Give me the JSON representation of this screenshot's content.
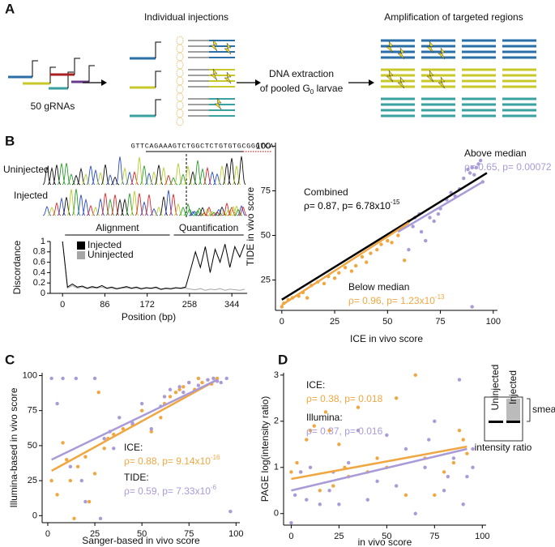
{
  "figure": {
    "panel_labels": [
      "A",
      "B",
      "C",
      "D"
    ]
  },
  "panel_a": {
    "grna_label": "50 gRNAs",
    "injections_title": "Individual injections",
    "extraction": [
      "DNA extraction",
      "of pooled G",
      "0",
      " larvae"
    ],
    "amplification_title": "Amplification of targeted regions"
  },
  "panel_b_trace": {
    "sequence": "GTTCAGAAAGTCTGGCTCTGTGTGCGGGTCA",
    "rows": [
      "Uninjected",
      "Injected"
    ]
  },
  "chart_data": [
    {
      "type": "line",
      "xlabel": "Position (bp)",
      "ylabel": "Discordance",
      "x": [
        0,
        10,
        20,
        30,
        40,
        50,
        60,
        70,
        80,
        90,
        100,
        110,
        120,
        130,
        140,
        150,
        160,
        170,
        180,
        190,
        200,
        210,
        220,
        230,
        240,
        250,
        260,
        270,
        280,
        290,
        300,
        310,
        320,
        330,
        340,
        350,
        360,
        370
      ],
      "series": [
        {
          "name": "Injected",
          "color": "#000000",
          "values": [
            1,
            0.12,
            0.18,
            0.12,
            0.14,
            0.1,
            0.13,
            0.11,
            0.15,
            0.1,
            0.12,
            0.09,
            0.11,
            0.13,
            0.1,
            0.12,
            0.09,
            0.11,
            0.1,
            0.12,
            0.08,
            0.1,
            0.09,
            0.11,
            0.1,
            0.12,
            0.45,
            0.8,
            0.5,
            0.9,
            0.4,
            0.85,
            0.6,
            0.95,
            0.5,
            0.9,
            0.7,
            0.95
          ]
        },
        {
          "name": "Uninjected",
          "color": "#a6a6a6",
          "values": [
            1,
            0.1,
            0.15,
            0.1,
            0.12,
            0.09,
            0.11,
            0.1,
            0.12,
            0.09,
            0.1,
            0.08,
            0.1,
            0.11,
            0.09,
            0.1,
            0.08,
            0.1,
            0.09,
            0.1,
            0.07,
            0.09,
            0.08,
            0.1,
            0.09,
            0.1,
            0.08,
            0.07,
            0.09,
            0.06,
            0.08,
            0.07,
            0.09,
            0.06,
            0.08,
            0.07,
            0.06,
            0.08
          ]
        }
      ],
      "xlim": [
        -25,
        375
      ],
      "ylim": [
        0,
        1
      ],
      "xticks": [
        0,
        86,
        172,
        258,
        344
      ],
      "yticks": [
        0,
        0.2,
        0.4,
        0.6,
        0.8,
        1
      ],
      "regions": [
        {
          "label": "Alignment",
          "start": 5,
          "end": 218
        },
        {
          "label": "Quantification",
          "start": 226,
          "end": 368
        }
      ]
    },
    {
      "type": "scatter",
      "xlabel": "ICE in vivo score",
      "ylabel": "TIDE in vivo score",
      "xlim": [
        -3,
        102
      ],
      "ylim": [
        8,
        102
      ],
      "xticks": [
        0,
        25,
        50,
        75,
        100
      ],
      "yticks": [
        25,
        50,
        75,
        100
      ],
      "series": [
        {
          "name": "Below median",
          "color": "#f0a742",
          "x": [
            0,
            1,
            3,
            5,
            8,
            10,
            12,
            14,
            17,
            20,
            22,
            25,
            27,
            30,
            33,
            35,
            38,
            40,
            42,
            45,
            47,
            50,
            52,
            55,
            57,
            58,
            60
          ],
          "values": [
            10,
            12,
            14,
            15,
            16,
            18,
            15,
            22,
            24,
            23,
            27,
            26,
            29,
            32,
            30,
            33,
            38,
            35,
            40,
            42,
            45,
            47,
            46,
            50,
            55,
            36,
            58
          ],
          "fit": {
            "x": [
              0,
              60
            ],
            "values": [
              11,
              57
            ]
          },
          "stat": [
            "ρ= 0.96, p= 1.23x10",
            "-13"
          ]
        },
        {
          "name": "Above median",
          "color": "#a99ad8",
          "x": [
            60,
            62,
            63,
            65,
            66,
            68,
            70,
            72,
            74,
            75,
            78,
            80,
            82,
            84,
            86,
            88,
            89,
            90,
            91,
            92,
            93,
            94,
            95,
            90
          ],
          "values": [
            42,
            55,
            60,
            62,
            52,
            47,
            60,
            58,
            62,
            65,
            70,
            74,
            72,
            76,
            82,
            87,
            85,
            88,
            84,
            88,
            90,
            92,
            80,
            10
          ],
          "fit": {
            "x": [
              55,
              95
            ],
            "values": [
              52,
              80
            ]
          },
          "stat": [
            "ρ= 0.65, p= 0.00072"
          ]
        }
      ],
      "combined": {
        "name": "Combined",
        "color": "#000000",
        "fit": {
          "x": [
            0,
            97
          ],
          "values": [
            14,
            85
          ]
        },
        "stat": [
          "ρ= 0.87, p= 6.78x10",
          "-15"
        ]
      }
    },
    {
      "type": "scatter",
      "xlabel": "Sanger-based in vivo score",
      "ylabel": "Illumina-based in vivo score",
      "xlim": [
        -3,
        102
      ],
      "ylim": [
        -5,
        102
      ],
      "xticks": [
        0,
        25,
        50,
        75,
        100
      ],
      "yticks": [
        0,
        25,
        50,
        75,
        100
      ],
      "series": [
        {
          "name": "ICE:",
          "color": "#f0a742",
          "x": [
            2,
            5,
            8,
            10,
            12,
            14,
            16,
            20,
            22,
            25,
            27,
            30,
            32,
            35,
            40,
            45,
            50,
            55,
            60,
            62,
            65,
            68,
            70,
            72,
            75,
            78,
            80,
            82,
            85,
            87,
            88,
            90
          ],
          "values": [
            25,
            15,
            52,
            40,
            25,
            -2,
            35,
            42,
            10,
            30,
            88,
            48,
            55,
            58,
            62,
            65,
            75,
            60,
            70,
            80,
            85,
            88,
            90,
            92,
            95,
            90,
            98,
            95,
            97,
            94,
            98,
            98
          ],
          "fit": {
            "x": [
              2,
              90
            ],
            "values": [
              32,
              97
            ]
          },
          "stat": [
            "ρ= 0.88, p= 9.14x10",
            "-16"
          ]
        },
        {
          "name": "TIDE:",
          "color": "#a99ad8",
          "x": [
            2,
            5,
            8,
            12,
            15,
            18,
            20,
            25,
            28,
            30,
            33,
            35,
            38,
            45,
            50,
            55,
            60,
            62,
            65,
            70,
            72,
            75,
            80,
            85,
            88,
            90,
            92,
            95,
            97
          ],
          "values": [
            98,
            80,
            98,
            35,
            98,
            25,
            10,
            98,
            -2,
            55,
            60,
            48,
            70,
            66,
            80,
            62,
            78,
            85,
            90,
            92,
            88,
            95,
            93,
            97,
            98,
            96,
            95,
            98,
            3
          ],
          "fit": {
            "x": [
              2,
              90
            ],
            "values": [
              40,
              97
            ]
          },
          "stat": [
            "ρ= 0.59, p= 7.33x10",
            "-6"
          ]
        }
      ]
    },
    {
      "type": "scatter",
      "xlabel": "in vivo score",
      "ylabel": "PAGE log(intensity ratio)",
      "xlim": [
        -4,
        102
      ],
      "ylim": [
        -0.25,
        3.05
      ],
      "xticks": [
        0,
        25,
        50,
        75,
        100
      ],
      "yticks": [
        0,
        1,
        2,
        3
      ],
      "series": [
        {
          "name": "ICE:",
          "color": "#f0a742",
          "x": [
            0,
            3,
            5,
            8,
            10,
            12,
            15,
            18,
            20,
            22,
            25,
            28,
            30,
            35,
            40,
            45,
            50,
            55,
            60,
            65,
            70,
            75,
            80,
            85,
            88,
            90,
            92
          ],
          "values": [
            0.9,
            1.1,
            0.9,
            1.6,
            1.8,
            1.9,
            0.5,
            2.2,
            1.8,
            0.6,
            1.5,
            1,
            0.8,
            2.3,
            0.9,
            1.2,
            1,
            2.5,
            0.4,
            3,
            1.2,
            0.4,
            0.9,
            1.1,
            1.8,
            1.6,
            1.3
          ],
          "fit": {
            "x": [
              0,
              92
            ],
            "values": [
              0.75,
              1.45
            ]
          },
          "stat": [
            "ρ= 0.38, p= 0.018"
          ]
        },
        {
          "name": "Illumina:",
          "color": "#a99ad8",
          "x": [
            0,
            2,
            5,
            8,
            10,
            15,
            20,
            22,
            25,
            30,
            35,
            40,
            45,
            50,
            55,
            60,
            65,
            70,
            72,
            75,
            80,
            82,
            85,
            88,
            90,
            92,
            95,
            95
          ],
          "values": [
            -0.2,
            0.4,
            0.9,
            0.3,
            1,
            0.2,
            0.5,
            0.9,
            0.2,
            1.1,
            1.8,
            0.3,
            0.7,
            1.7,
            0.6,
            1.4,
            0,
            1,
            1.6,
            2,
            0.5,
            0.8,
            1.2,
            2.9,
            0.2,
            0.8,
            1,
            1.4
          ],
          "fit": {
            "x": [
              0,
              92
            ],
            "values": [
              0.5,
              1.4
            ]
          },
          "stat": [
            "ρ= 0.37, p= 0.016"
          ]
        }
      ],
      "inset": {
        "lanes": [
          "Uninjected",
          "Injected"
        ],
        "smear_label": "smear",
        "caption": "intensity ratio"
      }
    }
  ]
}
